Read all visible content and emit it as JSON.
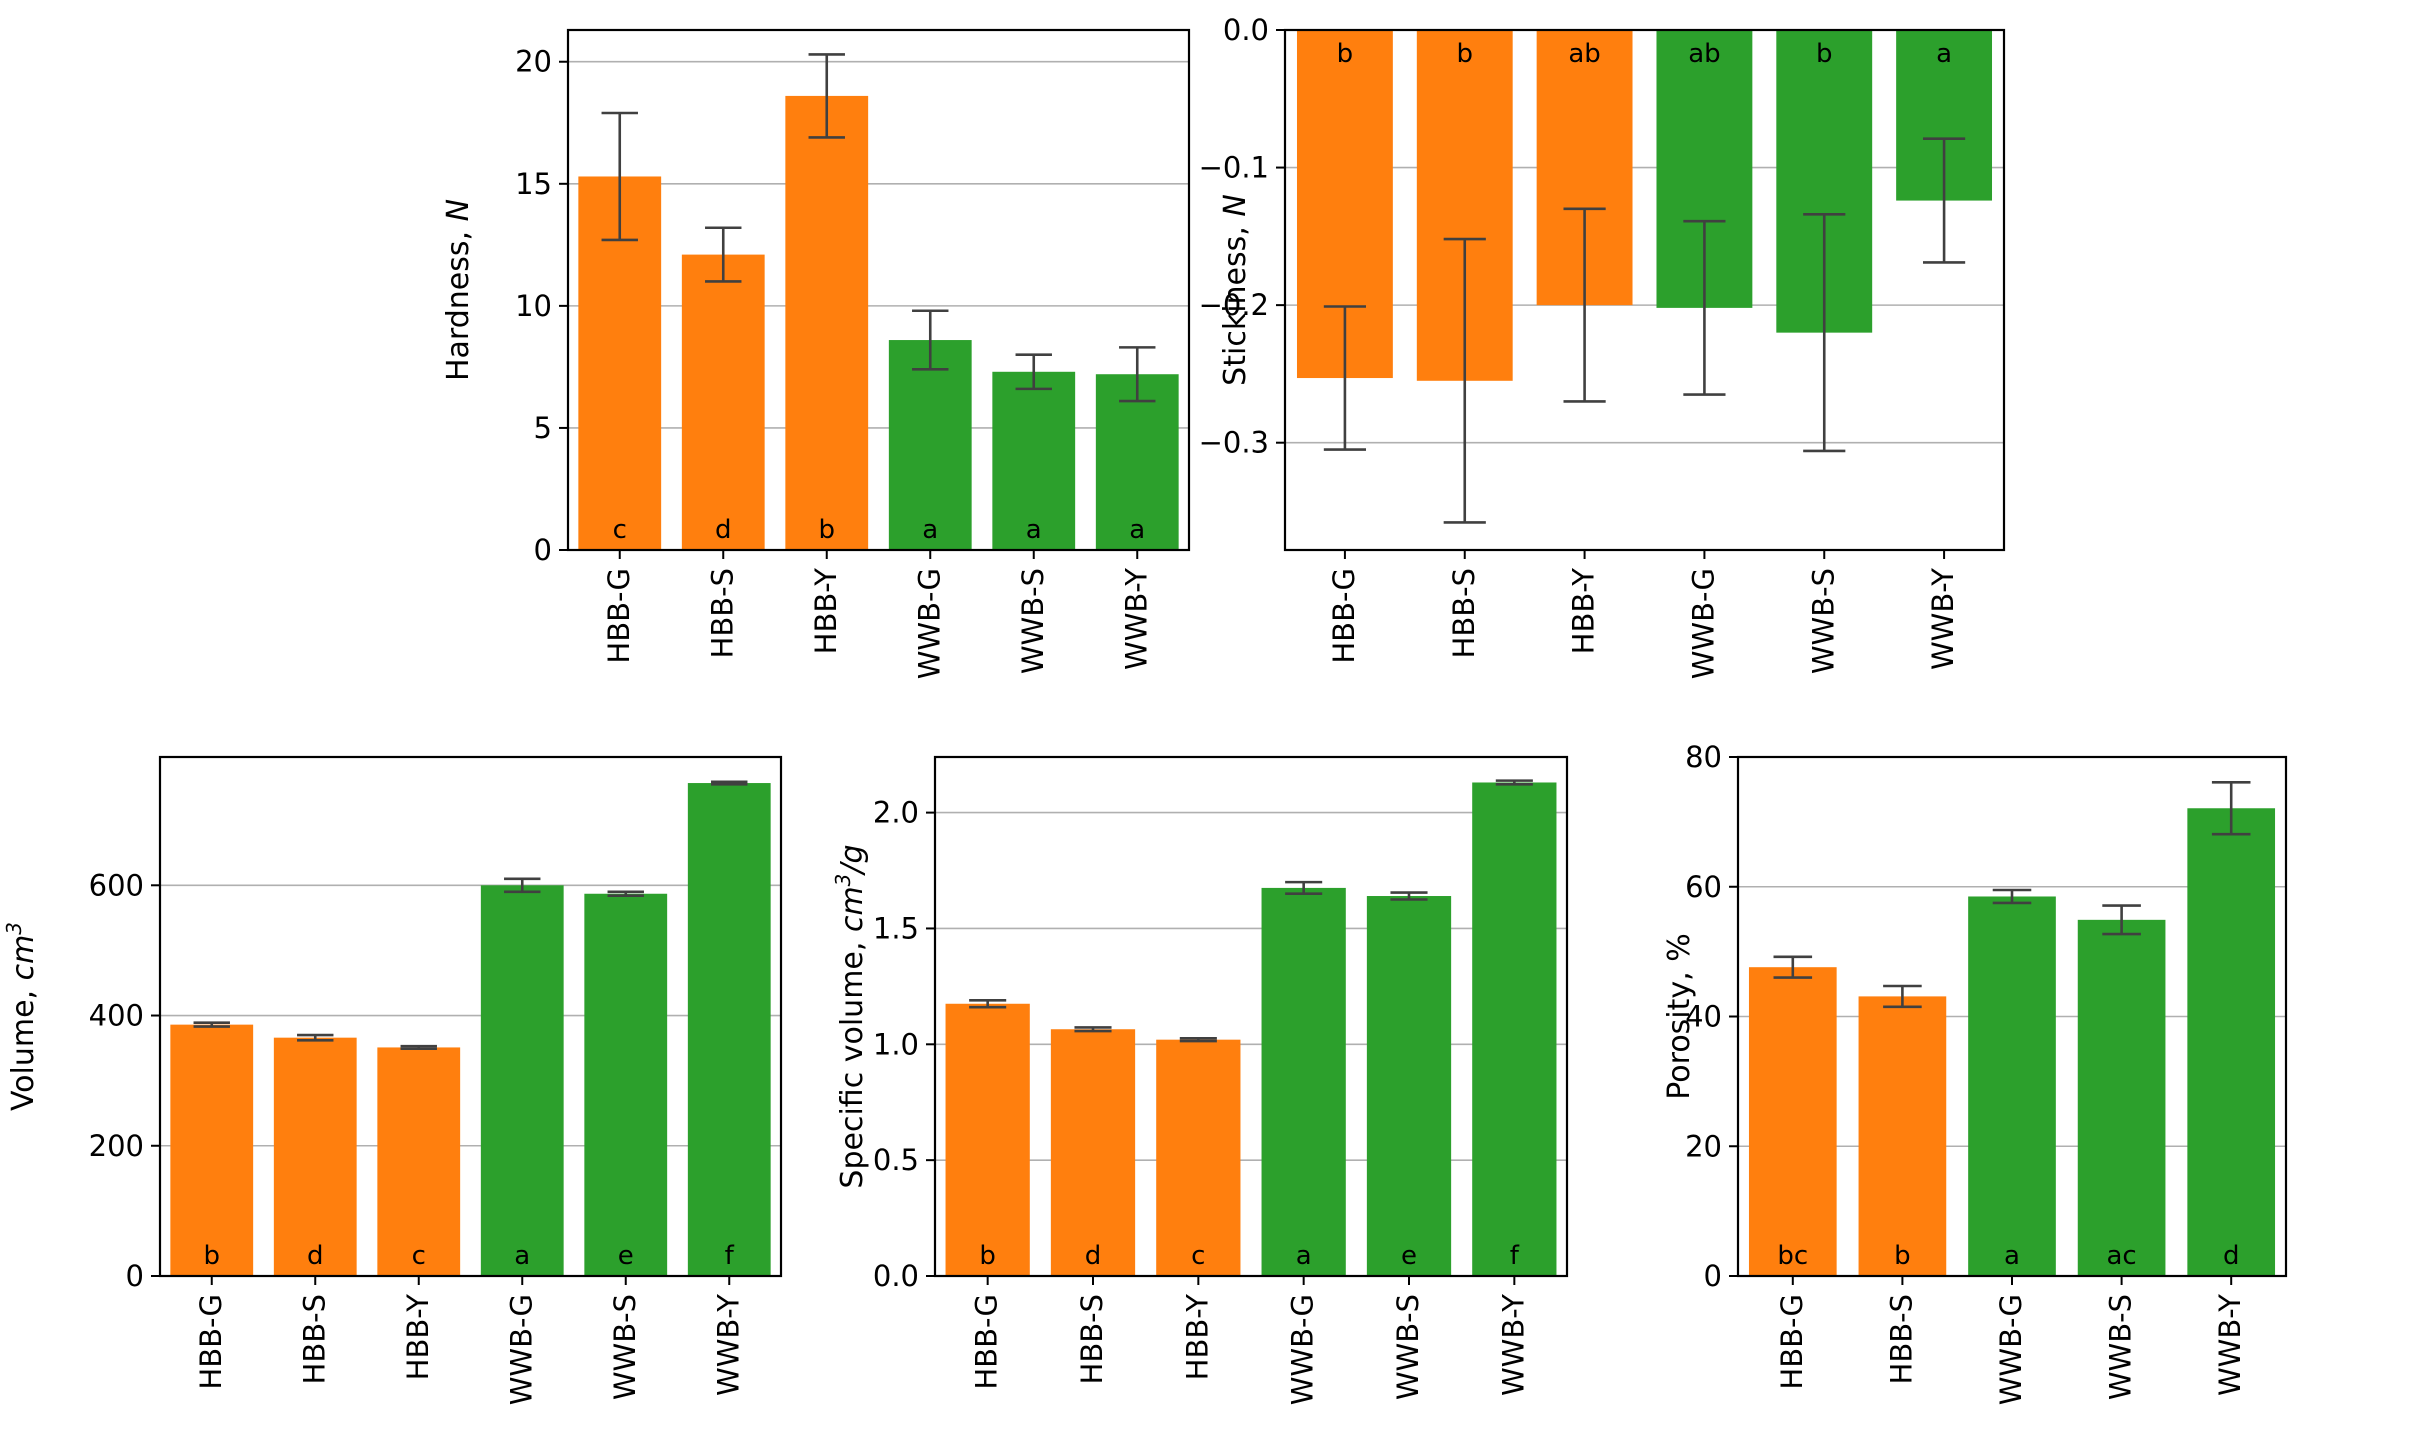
{
  "colors": {
    "hbb": "#ff7f0e",
    "wwb": "#2ca02c",
    "grid": "#b0b0b0",
    "errorbar": "#404040",
    "axis": "#000000"
  },
  "chart_data": [
    {
      "type": "bar",
      "ylabel": "Hardness, ",
      "ylabel_unit": "N",
      "categories": [
        "HBB-G",
        "HBB-S",
        "HBB-Y",
        "WWB-G",
        "WWB-S",
        "WWB-Y"
      ],
      "values": [
        15.3,
        12.1,
        18.6,
        8.6,
        7.3,
        7.2
      ],
      "errors": [
        2.6,
        1.1,
        1.7,
        1.2,
        0.7,
        1.1
      ],
      "letters": [
        "c",
        "d",
        "b",
        "a",
        "a",
        "a"
      ],
      "groups": [
        "hbb",
        "hbb",
        "hbb",
        "wwb",
        "wwb",
        "wwb"
      ],
      "letter_position": "bottom",
      "ylim": [
        0,
        21.3
      ],
      "yticks": [
        0,
        5,
        10,
        15,
        20
      ],
      "ytick_labels": [
        "0",
        "5",
        "10",
        "15",
        "20"
      ],
      "grid": true
    },
    {
      "type": "bar",
      "ylabel": "Stickiness, ",
      "ylabel_unit": "N",
      "categories": [
        "HBB-G",
        "HBB-S",
        "HBB-Y",
        "WWB-G",
        "WWB-S",
        "WWB-Y"
      ],
      "values": [
        -0.253,
        -0.255,
        -0.2,
        -0.202,
        -0.22,
        -0.124
      ],
      "errors": [
        0.052,
        0.103,
        0.07,
        0.063,
        0.086,
        0.045
      ],
      "letters": [
        "b",
        "b",
        "ab",
        "ab",
        "b",
        "a"
      ],
      "groups": [
        "hbb",
        "hbb",
        "hbb",
        "wwb",
        "wwb",
        "wwb"
      ],
      "letter_position": "top",
      "ylim": [
        -0.378,
        0
      ],
      "yticks": [
        -0.3,
        -0.2,
        -0.1,
        0.0
      ],
      "ytick_labels": [
        "−0.3",
        "−0.2",
        "−0.1",
        "0.0"
      ],
      "grid": true
    },
    {
      "type": "bar",
      "ylabel": "Volume, ",
      "ylabel_unit": "cm",
      "ylabel_sup": "3",
      "categories": [
        "HBB-G",
        "HBB-S",
        "HBB-Y",
        "WWB-G",
        "WWB-S",
        "WWB-Y"
      ],
      "values": [
        386,
        366,
        351,
        600,
        587,
        757
      ],
      "errors": [
        3,
        4,
        2,
        10,
        3,
        2
      ],
      "letters": [
        "b",
        "d",
        "c",
        "a",
        "e",
        "f"
      ],
      "groups": [
        "hbb",
        "hbb",
        "hbb",
        "wwb",
        "wwb",
        "wwb"
      ],
      "letter_position": "bottom",
      "ylim": [
        0,
        797
      ],
      "yticks": [
        0,
        200,
        400,
        600
      ],
      "ytick_labels": [
        "0",
        "200",
        "400",
        "600"
      ],
      "grid": true
    },
    {
      "type": "bar",
      "ylabel": "Specific volume, ",
      "ylabel_unit": "cm",
      "ylabel_sup": "3",
      "ylabel_tail": "/g",
      "categories": [
        "HBB-G",
        "HBB-S",
        "HBB-Y",
        "WWB-G",
        "WWB-S",
        "WWB-Y"
      ],
      "values": [
        1.175,
        1.065,
        1.02,
        1.675,
        1.64,
        2.13
      ],
      "errors": [
        0.015,
        0.008,
        0.006,
        0.025,
        0.015,
        0.008
      ],
      "letters": [
        "b",
        "d",
        "c",
        "a",
        "e",
        "f"
      ],
      "groups": [
        "hbb",
        "hbb",
        "hbb",
        "wwb",
        "wwb",
        "wwb"
      ],
      "letter_position": "bottom",
      "ylim": [
        0,
        2.24
      ],
      "yticks": [
        0.0,
        0.5,
        1.0,
        1.5,
        2.0
      ],
      "ytick_labels": [
        "0.0",
        "0.5",
        "1.0",
        "1.5",
        "2.0"
      ],
      "grid": true
    },
    {
      "type": "bar",
      "ylabel": "Porosity, %",
      "categories": [
        "HBB-G",
        "HBB-S",
        "WWB-G",
        "WWB-S",
        "WWB-Y"
      ],
      "values": [
        47.6,
        43.1,
        58.5,
        54.9,
        72.1
      ],
      "errors": [
        1.6,
        1.6,
        1.0,
        2.2,
        4.0
      ],
      "letters": [
        "bc",
        "b",
        "a",
        "ac",
        "d"
      ],
      "groups": [
        "hbb",
        "hbb",
        "wwb",
        "wwb",
        "wwb"
      ],
      "letter_position": "bottom",
      "ylim": [
        0,
        80
      ],
      "yticks": [
        0,
        20,
        40,
        60,
        80
      ],
      "ytick_labels": [
        "0",
        "20",
        "40",
        "60",
        "80"
      ],
      "grid": true
    }
  ]
}
